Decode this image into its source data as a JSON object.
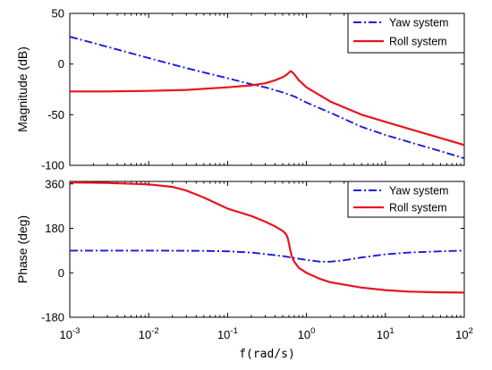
{
  "chart_data": [
    {
      "type": "line",
      "title": "",
      "xlabel": "",
      "ylabel": "Magnitude (dB)",
      "xscale": "log",
      "xlim": [
        0.001,
        100
      ],
      "ylim": [
        -100,
        50
      ],
      "yticks": [
        50,
        0,
        -50,
        -100
      ],
      "ytick_labels": [
        "50",
        "0",
        "-50",
        "-100"
      ],
      "grid": false,
      "legend_position": "top-right",
      "series": [
        {
          "name": "Yaw system",
          "color": "#1a1adc",
          "style": "dashdot",
          "x": [
            0.001,
            0.003,
            0.01,
            0.03,
            0.1,
            0.2,
            0.3,
            0.5,
            0.7,
            1,
            2,
            5,
            10,
            20,
            50,
            100
          ],
          "y": [
            27,
            17,
            6,
            -4,
            -14,
            -20,
            -23,
            -28,
            -32,
            -38,
            -48,
            -62,
            -70,
            -77,
            -86,
            -93
          ]
        },
        {
          "name": "Roll system",
          "color": "#e8141e",
          "style": "solid",
          "x": [
            0.001,
            0.003,
            0.01,
            0.03,
            0.1,
            0.2,
            0.3,
            0.4,
            0.5,
            0.55,
            0.6,
            0.63,
            0.66,
            0.7,
            0.8,
            1,
            2,
            5,
            10,
            20,
            50,
            100
          ],
          "y": [
            -27,
            -27,
            -26.5,
            -25.5,
            -23,
            -21,
            -19,
            -16,
            -13,
            -11,
            -8.5,
            -7,
            -8,
            -10,
            -16,
            -23,
            -37,
            -50,
            -57,
            -64,
            -73,
            -80
          ]
        }
      ]
    },
    {
      "type": "line",
      "title": "",
      "xlabel": "f(rad/s)",
      "ylabel": "Phase (deg)",
      "xscale": "log",
      "xlim": [
        0.001,
        100
      ],
      "ylim": [
        -180,
        370
      ],
      "xticks": [
        0.001,
        0.01,
        0.1,
        1,
        10,
        100
      ],
      "xtick_labels": [
        {
          "base": "10",
          "exp": "-3"
        },
        {
          "base": "10",
          "exp": "-2"
        },
        {
          "base": "10",
          "exp": "-1"
        },
        {
          "base": "10",
          "exp": "0"
        },
        {
          "base": "10",
          "exp": "1"
        },
        {
          "base": "10",
          "exp": "2"
        }
      ],
      "yticks": [
        360,
        180,
        0,
        -180
      ],
      "ytick_labels": [
        "360",
        "180",
        "0",
        "-180"
      ],
      "grid": false,
      "legend_position": "top-right",
      "series": [
        {
          "name": "Yaw system",
          "color": "#1a1adc",
          "style": "dashdot",
          "x": [
            0.001,
            0.01,
            0.05,
            0.1,
            0.2,
            0.5,
            1,
            1.5,
            2,
            3,
            5,
            10,
            20,
            50,
            100
          ],
          "y": [
            90,
            90,
            89,
            87,
            82,
            68,
            52,
            45,
            45,
            51,
            62,
            75,
            82,
            87,
            90
          ]
        },
        {
          "name": "Roll system",
          "color": "#e8141e",
          "style": "solid",
          "x": [
            0.001,
            0.003,
            0.01,
            0.02,
            0.03,
            0.05,
            0.1,
            0.2,
            0.3,
            0.4,
            0.5,
            0.55,
            0.58,
            0.6,
            0.62,
            0.65,
            0.7,
            0.8,
            1,
            1.5,
            2,
            5,
            10,
            20,
            50,
            100
          ],
          "y": [
            366,
            364,
            358,
            348,
            333,
            305,
            260,
            230,
            207,
            188,
            170,
            157,
            140,
            120,
            95,
            68,
            45,
            20,
            0,
            -25,
            -38,
            -60,
            -70,
            -76,
            -79,
            -80
          ]
        }
      ]
    }
  ]
}
